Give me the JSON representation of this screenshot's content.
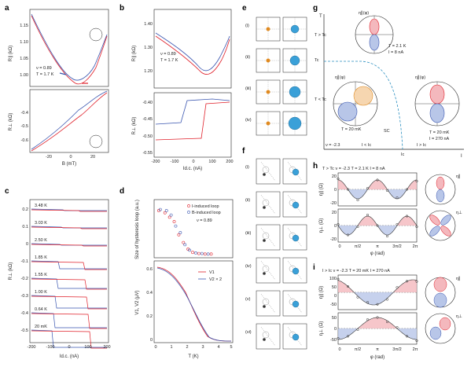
{
  "panels": {
    "a": {
      "label": "a",
      "top": {
        "ylabel": "R∥ (kΩ)",
        "yticks": [
          "1.15",
          "1.10",
          "1.05",
          "1.00"
        ],
        "ann": [
          "ν = 0.89",
          "T = 1.7 K"
        ]
      },
      "bottom": {
        "ylabel": "R⊥ (kΩ)",
        "yticks": [
          "-0.4",
          "-0.5",
          "-0.6"
        ],
        "xlabel": "B (mT)",
        "xticks": [
          "-20",
          "0",
          "20"
        ]
      }
    },
    "b": {
      "label": "b",
      "top": {
        "ylabel": "R∥ (kΩ)",
        "yticks": [
          "1.40",
          "1.30",
          "1.20"
        ],
        "ann": [
          "ν = 0.89",
          "T = 1.7 K"
        ]
      },
      "bottom": {
        "ylabel": "R⊥ (kΩ)",
        "yticks": [
          "-0.40",
          "-0.45",
          "-0.50",
          "-0.55"
        ],
        "xlabel": "Id.c. (nA)",
        "xticks": [
          "-200",
          "-100",
          "0",
          "100",
          "200"
        ]
      }
    },
    "c": {
      "label": "c",
      "ylabel": "R⊥ (kΩ)",
      "yticks": [
        "0.2",
        "0.1",
        "0",
        "-0.1",
        "-0.2",
        "-0.3",
        "-0.4",
        "-0.5"
      ],
      "xlabel": "Id.c. (nA)",
      "xticks": [
        "-200",
        "-100",
        "0",
        "100",
        "200"
      ],
      "temps": [
        "3.48 K",
        "3.03 K",
        "2.50 K",
        "1.85 K",
        "1.55 K",
        "1.00 K",
        "0.64 K",
        "20 mK"
      ]
    },
    "d": {
      "label": "d",
      "top": {
        "ylabel": "Size of hysteresis loop (a.u.)",
        "legend": [
          "I-induced loop",
          "B-induced loop"
        ],
        "ann": "ν = 0.89"
      },
      "bottom": {
        "ylabel": "V1, V2 (μV)",
        "yticks": [
          "0.6",
          "0.4",
          "0.2",
          "0"
        ],
        "xlabel": "T (K)",
        "xticks": [
          "0",
          "1",
          "2",
          "3",
          "4",
          "5"
        ],
        "legend": [
          "V1",
          "V2 × 2"
        ]
      }
    },
    "e": {
      "label": "e",
      "rows": [
        "(i)",
        "(ii)",
        "(iii)",
        "(iv)"
      ]
    },
    "f": {
      "label": "f",
      "rows": [
        "(i)",
        "(ii)",
        "(iii)",
        "(iv)",
        "(v)",
        "(vi)"
      ]
    },
    "g": {
      "label": "g",
      "ylabel": "T",
      "xlabel": "I",
      "ann": [
        "T > Tc",
        "Tc",
        "T < Tc",
        "ν = -2.3",
        "I < Ic",
        "Ic",
        "I > Ic",
        "SC"
      ],
      "top_polar": {
        "label": "η∥(φ)",
        "ann": [
          "T = 2.1 K",
          "I = 8 nA"
        ]
      },
      "left_polar": {
        "label": "η∥(φ)",
        "ann": [
          "T = 20 mK"
        ]
      },
      "right_polar": {
        "label": "η∥(φ)",
        "ann": [
          "T = 20 mK",
          "I = 270 nA"
        ]
      }
    },
    "h": {
      "label": "h",
      "header": "T > Tc   ν = -2.3   T = 2.1 K   I = 8 nA",
      "top": {
        "ylabel": "η∥ (Ω)",
        "yticks": [
          "20",
          "0",
          "-20"
        ]
      },
      "bottom": {
        "ylabel": "η⊥ (Ω)",
        "yticks": [
          "20",
          "0",
          "-20"
        ]
      },
      "xlabel": "φ (rad)",
      "xticks": [
        "0",
        "π/2",
        "π",
        "3π/2",
        "2π"
      ],
      "polar_labels": [
        "η∥",
        "η⊥"
      ]
    },
    "i": {
      "label": "i",
      "header": "I > Ic   ν = -2.3   T = 20 mK   I = 270 nA",
      "top": {
        "ylabel": "η∥ (Ω)",
        "yticks": [
          "100",
          "50",
          "0",
          "-50"
        ]
      },
      "bottom": {
        "ylabel": "η⊥ (Ω)",
        "yticks": [
          "50",
          "0",
          "-50"
        ]
      },
      "xlabel": "φ (rad)",
      "xticks": [
        "0",
        "π/2",
        "π",
        "3π/2",
        "2π"
      ],
      "polar_labels": [
        "η∥",
        "η⊥"
      ]
    }
  },
  "colors": {
    "red": "#e0202a",
    "blue": "#3a56b0",
    "teal": "#2a8fc0",
    "pinkfill": "#f4b8bd",
    "bluefill": "#b8c6e8"
  }
}
